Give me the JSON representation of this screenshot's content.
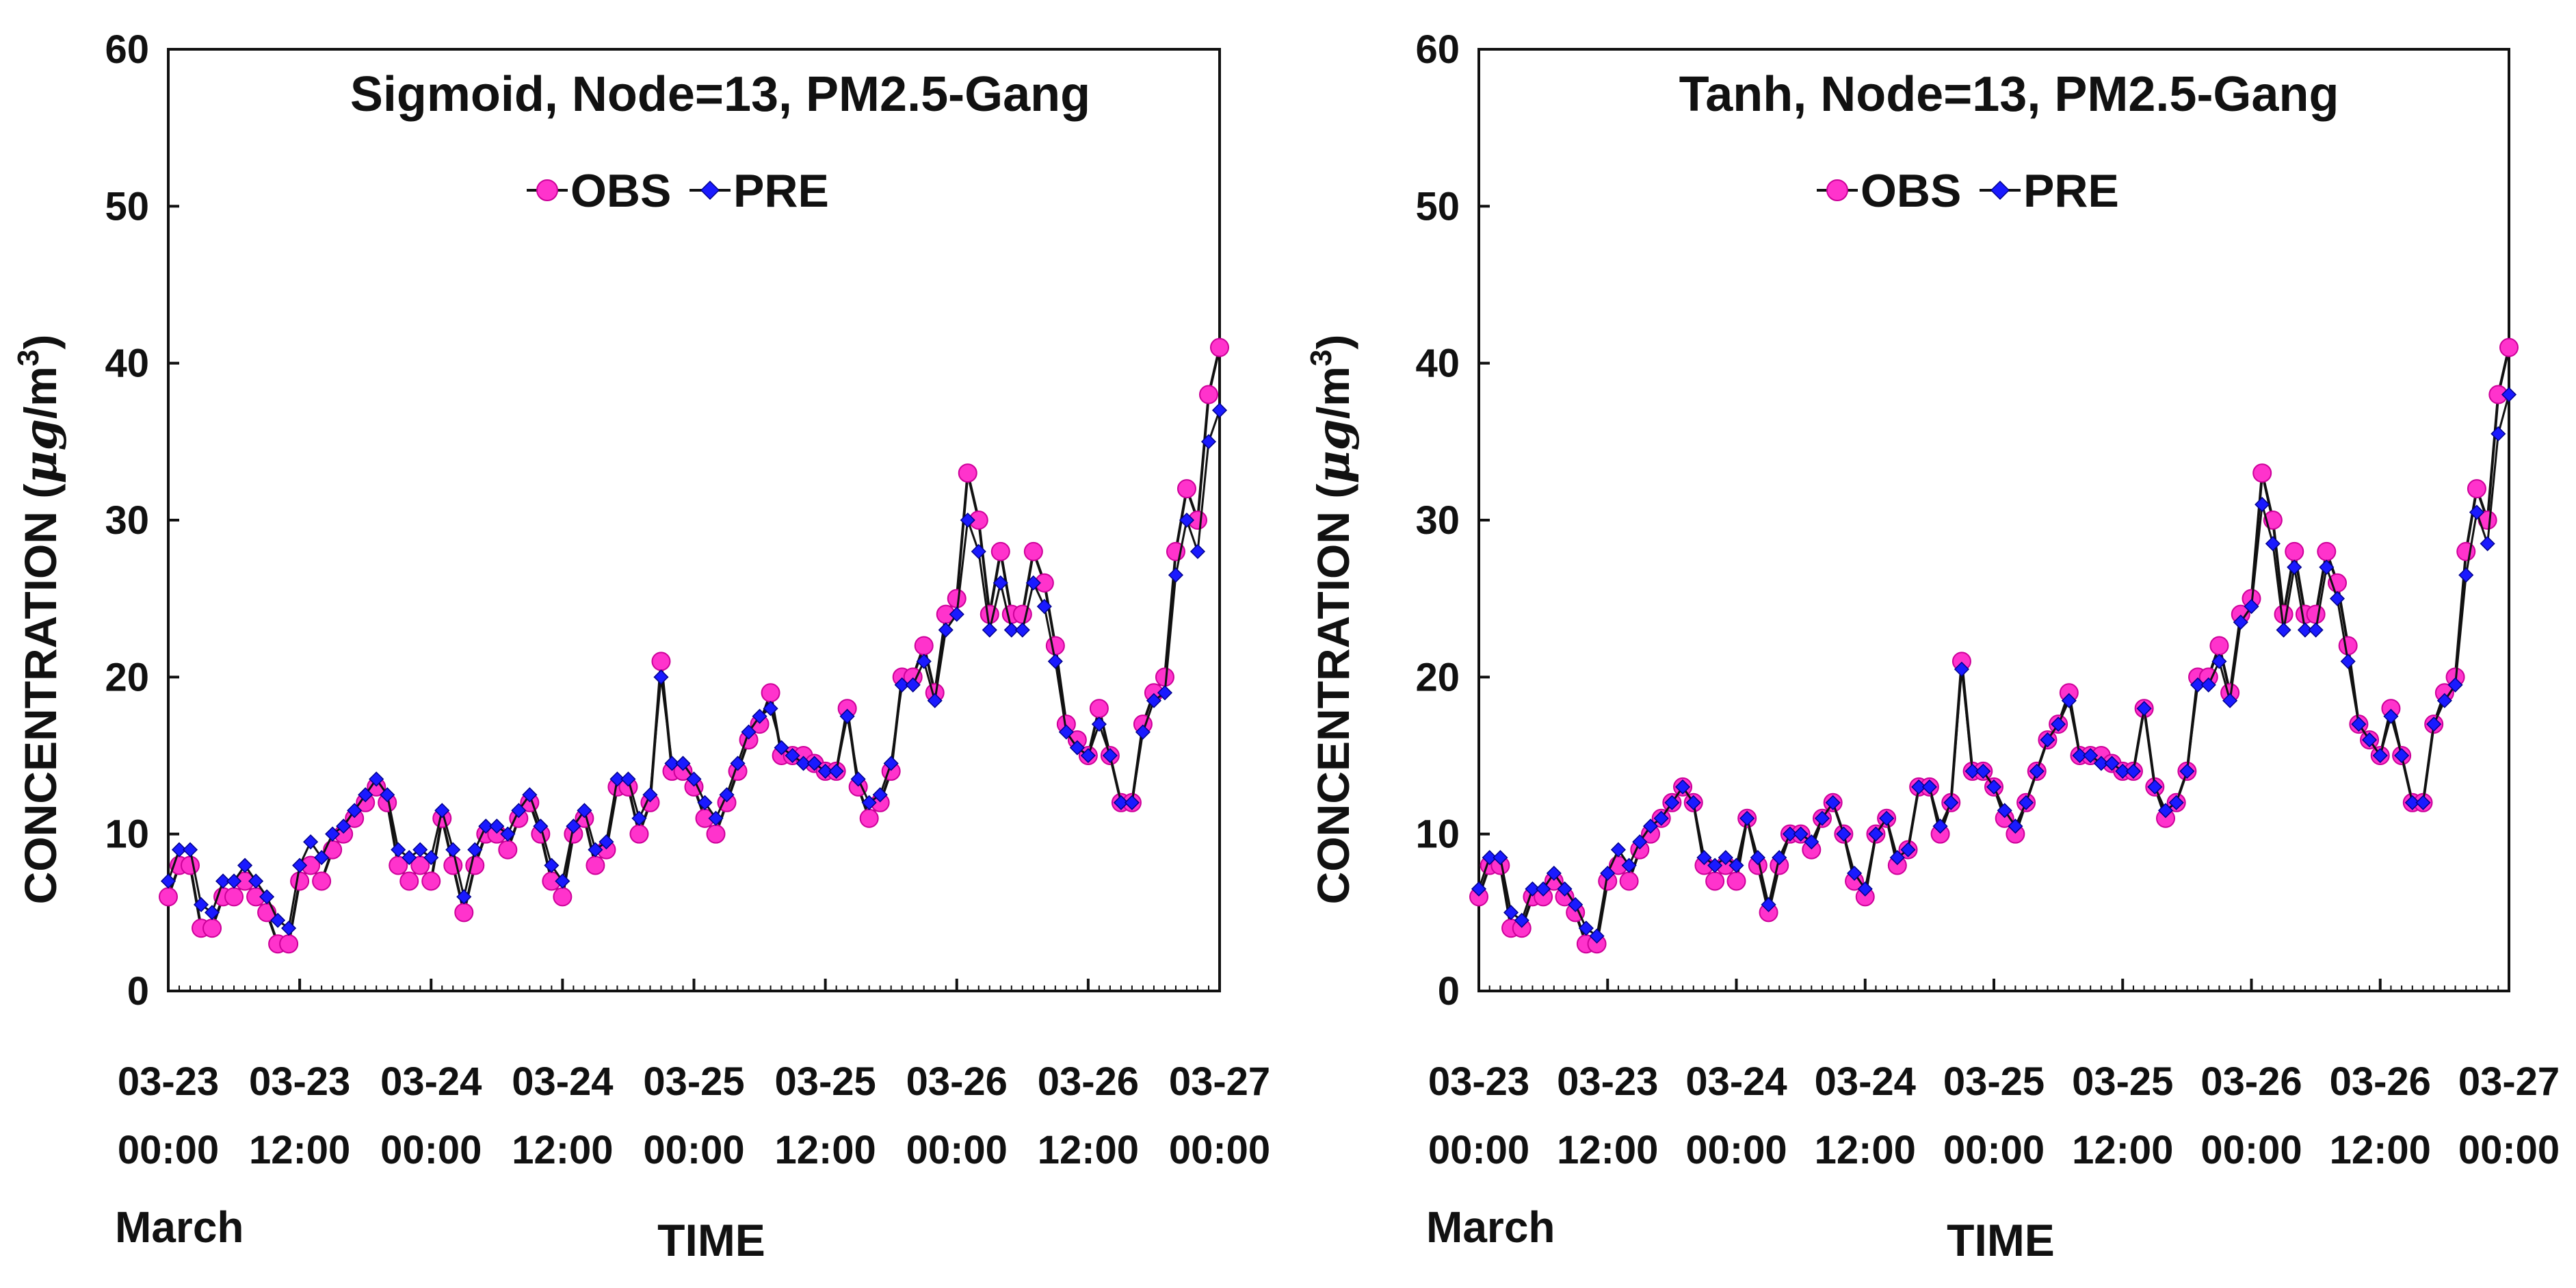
{
  "colors": {
    "obs": "#ff33cc",
    "pre": "#1a1aff",
    "axis": "#111111",
    "line": "#111111"
  },
  "chart_data": [
    {
      "type": "line",
      "title": "Sigmoid, Node=13, PM2.5-Gang",
      "xlabel": "TIME",
      "ylabel": "CONCENTRATION (μg/m3)",
      "ylabel_text": "CONCENTRATION",
      "ylabel_unit_prefix": "(",
      "ylabel_unit_mu": "μg",
      "ylabel_unit_rest": "/m",
      "ylabel_unit_sup": "3",
      "ylabel_unit_close": ")",
      "month_label": "March",
      "ylim": [
        0,
        60
      ],
      "yticks": [
        0,
        10,
        20,
        30,
        40,
        50,
        60
      ],
      "xlim": [
        0,
        96
      ],
      "xticks": [
        0,
        12,
        24,
        36,
        48,
        60,
        72,
        84,
        96
      ],
      "xtick_line1": [
        "03-23",
        "03-23",
        "03-24",
        "03-24",
        "03-25",
        "03-25",
        "03-26",
        "03-26",
        "03-27"
      ],
      "xtick_line2": [
        "00:00",
        "12:00",
        "00:00",
        "12:00",
        "00:00",
        "12:00",
        "00:00",
        "12:00",
        "00:00"
      ],
      "legend": [
        "OBS",
        "PRE"
      ],
      "series": [
        {
          "name": "OBS",
          "values": [
            6,
            8,
            8,
            4,
            4,
            6,
            6,
            7,
            6,
            5,
            3,
            3,
            7,
            8,
            7,
            9,
            10,
            11,
            12,
            13,
            12,
            8,
            7,
            8,
            7,
            11,
            8,
            5,
            8,
            10,
            10,
            9,
            11,
            12,
            10,
            7,
            6,
            10,
            11,
            8,
            9,
            13,
            13,
            10,
            12,
            21,
            14,
            14,
            13,
            11,
            10,
            12,
            14,
            16,
            17,
            19,
            15,
            15,
            15,
            14.5,
            14,
            14,
            18,
            13,
            11,
            12,
            14,
            20,
            20,
            22,
            19,
            24,
            25,
            33,
            30,
            24,
            28,
            24,
            24,
            28,
            26,
            22,
            17,
            16,
            15,
            18,
            15,
            12,
            12,
            17,
            19,
            20,
            28,
            32,
            30,
            38,
            41
          ]
        },
        {
          "name": "PRE",
          "values": [
            7,
            9,
            9,
            5.5,
            5,
            7,
            7,
            8,
            7,
            6,
            4.5,
            4,
            8,
            9.5,
            8.5,
            10,
            10.5,
            11.5,
            12.5,
            13.5,
            12.5,
            9,
            8.5,
            9,
            8.5,
            11.5,
            9,
            6,
            9,
            10.5,
            10.5,
            10,
            11.5,
            12.5,
            10.5,
            8,
            7,
            10.5,
            11.5,
            9,
            9.5,
            13.5,
            13.5,
            11,
            12.5,
            20,
            14.5,
            14.5,
            13.5,
            12,
            11,
            12.5,
            14.5,
            16.5,
            17.5,
            18,
            15.5,
            15,
            14.5,
            14.5,
            14,
            14,
            17.5,
            13.5,
            12,
            12.5,
            14.5,
            19.5,
            19.5,
            21,
            18.5,
            23,
            24,
            30,
            28,
            23,
            26,
            23,
            23,
            26,
            24.5,
            21,
            16.5,
            15.5,
            15,
            17,
            15,
            12,
            12,
            16.5,
            18.5,
            19,
            26.5,
            30,
            28,
            35,
            37
          ]
        }
      ]
    },
    {
      "type": "line",
      "title": "Tanh, Node=13, PM2.5-Gang",
      "xlabel": "TIME",
      "ylabel": "CONCENTRATION (μg/m3)",
      "ylabel_text": "CONCENTRATION",
      "ylabel_unit_prefix": "(",
      "ylabel_unit_mu": "μg",
      "ylabel_unit_rest": "/m",
      "ylabel_unit_sup": "3",
      "ylabel_unit_close": ")",
      "month_label": "March",
      "ylim": [
        0,
        60
      ],
      "yticks": [
        0,
        10,
        20,
        30,
        40,
        50,
        60
      ],
      "xlim": [
        0,
        96
      ],
      "xticks": [
        0,
        12,
        24,
        36,
        48,
        60,
        72,
        84,
        96
      ],
      "xtick_line1": [
        "03-23",
        "03-23",
        "03-24",
        "03-24",
        "03-25",
        "03-25",
        "03-26",
        "03-26",
        "03-27"
      ],
      "xtick_line2": [
        "00:00",
        "12:00",
        "00:00",
        "12:00",
        "00:00",
        "12:00",
        "00:00",
        "12:00",
        "00:00"
      ],
      "legend": [
        "OBS",
        "PRE"
      ],
      "series": [
        {
          "name": "OBS",
          "values": [
            6,
            8,
            8,
            4,
            4,
            6,
            6,
            7,
            6,
            5,
            3,
            3,
            7,
            8,
            7,
            9,
            10,
            11,
            12,
            13,
            12,
            8,
            7,
            8,
            7,
            11,
            8,
            5,
            8,
            10,
            10,
            9,
            11,
            12,
            10,
            7,
            6,
            10,
            11,
            8,
            9,
            13,
            13,
            10,
            12,
            21,
            14,
            14,
            13,
            11,
            10,
            12,
            14,
            16,
            17,
            19,
            15,
            15,
            15,
            14.5,
            14,
            14,
            18,
            13,
            11,
            12,
            14,
            20,
            20,
            22,
            19,
            24,
            25,
            33,
            30,
            24,
            28,
            24,
            24,
            28,
            26,
            22,
            17,
            16,
            15,
            18,
            15,
            12,
            12,
            17,
            19,
            20,
            28,
            32,
            30,
            38,
            41
          ]
        },
        {
          "name": "PRE",
          "values": [
            6.5,
            8.5,
            8.5,
            5,
            4.5,
            6.5,
            6.5,
            7.5,
            6.5,
            5.5,
            4,
            3.5,
            7.5,
            9,
            8,
            9.5,
            10.5,
            11,
            12,
            13,
            12,
            8.5,
            8,
            8.5,
            8,
            11,
            8.5,
            5.5,
            8.5,
            10,
            10,
            9.5,
            11,
            12,
            10,
            7.5,
            6.5,
            10,
            11,
            8.5,
            9,
            13,
            13,
            10.5,
            12,
            20.5,
            14,
            14,
            13,
            11.5,
            10.5,
            12,
            14,
            16,
            17,
            18.5,
            15,
            15,
            14.5,
            14.5,
            14,
            14,
            18,
            13,
            11.5,
            12,
            14,
            19.5,
            19.5,
            21,
            18.5,
            23.5,
            24.5,
            31,
            28.5,
            23,
            27,
            23,
            23,
            27,
            25,
            21,
            17,
            16,
            15,
            17.5,
            15,
            12,
            12,
            17,
            18.5,
            19.5,
            26.5,
            30.5,
            28.5,
            35.5,
            38
          ]
        }
      ]
    }
  ]
}
